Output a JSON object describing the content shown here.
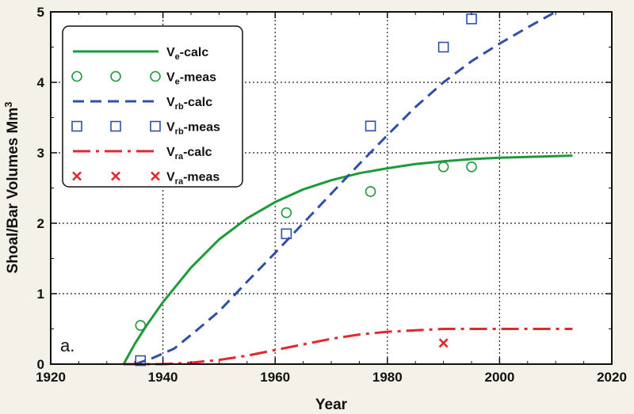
{
  "chart_data": {
    "type": "line",
    "panel_label": "a.",
    "xlabel": "Year",
    "ylabel_main": "Shoal/Bar Volumes Mm",
    "ylabel_sup": "3",
    "xlim": [
      1920,
      2020
    ],
    "ylim": [
      0,
      5
    ],
    "xticks": [
      "1920",
      "1940",
      "1960",
      "1980",
      "2000",
      "2020"
    ],
    "yticks": [
      "0",
      "1",
      "2",
      "3",
      "4",
      "5"
    ],
    "grid": "dotted",
    "legend_position": "top-left",
    "colors": {
      "green": "#1f9a3a",
      "blue": "#2f4fa8",
      "red": "#e5262a"
    },
    "series": [
      {
        "key": "ve_calc",
        "kind": "line",
        "style": "solid",
        "color": "#1f9a3a",
        "label_base": "V",
        "label_sub": "e",
        "label_suffix": "-calc",
        "x": [
          1933,
          1935,
          1937,
          1940,
          1945,
          1950,
          1955,
          1960,
          1965,
          1970,
          1975,
          1980,
          1985,
          1990,
          1995,
          2000,
          2005,
          2013
        ],
        "y": [
          0.0,
          0.29,
          0.54,
          0.88,
          1.37,
          1.77,
          2.07,
          2.3,
          2.48,
          2.61,
          2.71,
          2.78,
          2.84,
          2.88,
          2.91,
          2.93,
          2.94,
          2.96
        ]
      },
      {
        "key": "ve_meas",
        "kind": "markers",
        "marker": "circle",
        "color": "#1f9a3a",
        "label_base": "V",
        "label_sub": "e",
        "label_suffix": "-meas",
        "x": [
          1936,
          1962,
          1977,
          1990,
          1995
        ],
        "y": [
          0.55,
          2.15,
          2.45,
          2.8,
          2.8
        ]
      },
      {
        "key": "vrb_calc",
        "kind": "line",
        "style": "dashed",
        "color": "#2f4fa8",
        "label_base": "V",
        "label_sub": "rb",
        "label_suffix": "-calc",
        "x": [
          1935,
          1938,
          1942,
          1946,
          1950,
          1955,
          1960,
          1965,
          1970,
          1975,
          1980,
          1985,
          1990,
          1995,
          2000,
          2005,
          2010
        ],
        "y": [
          0.0,
          0.08,
          0.22,
          0.48,
          0.75,
          1.17,
          1.58,
          2.0,
          2.42,
          2.84,
          3.25,
          3.65,
          4.0,
          4.3,
          4.55,
          4.78,
          5.0
        ]
      },
      {
        "key": "vrb_meas",
        "kind": "markers",
        "marker": "square",
        "color": "#2f4fa8",
        "label_base": "V",
        "label_sub": "rb",
        "label_suffix": "-meas",
        "x": [
          1936,
          1962,
          1977,
          1990,
          1995
        ],
        "y": [
          0.05,
          1.85,
          3.38,
          4.5,
          4.9
        ]
      },
      {
        "key": "vra_calc",
        "kind": "line",
        "style": "dashdot",
        "color": "#e5262a",
        "label_base": "V",
        "label_sub": "ra",
        "label_suffix": "-calc",
        "x": [
          1933,
          1940,
          1945,
          1950,
          1955,
          1960,
          1965,
          1970,
          1975,
          1980,
          1985,
          1990,
          1995,
          2000,
          2013
        ],
        "y": [
          0.0,
          0.0,
          0.02,
          0.06,
          0.12,
          0.2,
          0.28,
          0.36,
          0.42,
          0.46,
          0.48,
          0.5,
          0.5,
          0.5,
          0.5
        ]
      },
      {
        "key": "vra_meas",
        "kind": "markers",
        "marker": "x",
        "color": "#e5262a",
        "label_base": "V",
        "label_sub": "ra",
        "label_suffix": "-meas",
        "x": [
          1990
        ],
        "y": [
          0.3
        ]
      }
    ]
  }
}
